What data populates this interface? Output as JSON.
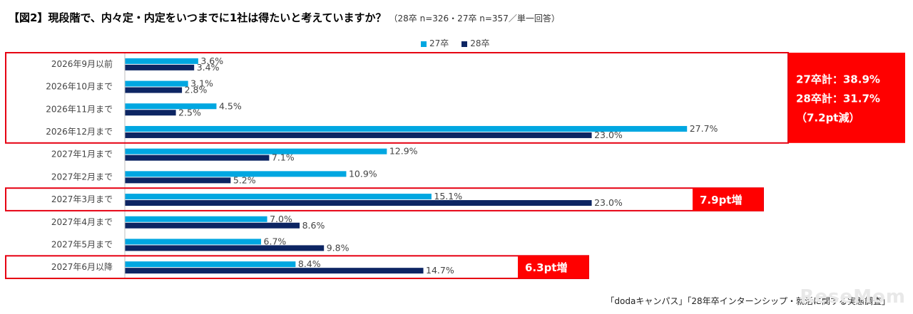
{
  "title": "【図2】現段階で、内々定・内定をいつまでに1社は得たいと考えていますか？",
  "subtitle": "（28卒 n=326・27卒 n=357／単一回答）",
  "source": "「dodaキャンパス」「28年卒インターンシップ・就活に関する実態調査」",
  "watermark": "ReseMom",
  "chart_data": {
    "type": "bar",
    "orientation": "horizontal",
    "categories": [
      "2026年9月以前",
      "2026年10月まで",
      "2026年11月まで",
      "2026年12月まで",
      "2027年1月まで",
      "2027年2月まで",
      "2027年3月まで",
      "2027年4月まで",
      "2027年5月まで",
      "2027年6月以降"
    ],
    "series": [
      {
        "name": "27卒",
        "color": "#00a7e1",
        "values": [
          3.6,
          3.1,
          4.5,
          27.7,
          12.9,
          10.9,
          15.1,
          7.0,
          6.7,
          8.4
        ]
      },
      {
        "name": "28卒",
        "color": "#0d2563",
        "values": [
          3.4,
          2.8,
          2.5,
          23.0,
          7.1,
          5.2,
          23.0,
          8.6,
          9.8,
          14.7
        ]
      }
    ],
    "value_suffix": "%",
    "xlim": [
      0,
      32
    ],
    "grid": false,
    "legend_position": "top-center",
    "annotations": [
      {
        "categories": [
          0,
          3
        ],
        "lines": [
          "27卒計：38.9%",
          "28卒計：31.7%",
          "（7.2pt減）"
        ]
      },
      {
        "categories": [
          6,
          6
        ],
        "lines": [
          "7.9pt増"
        ]
      },
      {
        "categories": [
          9,
          9
        ],
        "lines": [
          "6.3pt増"
        ]
      }
    ]
  }
}
